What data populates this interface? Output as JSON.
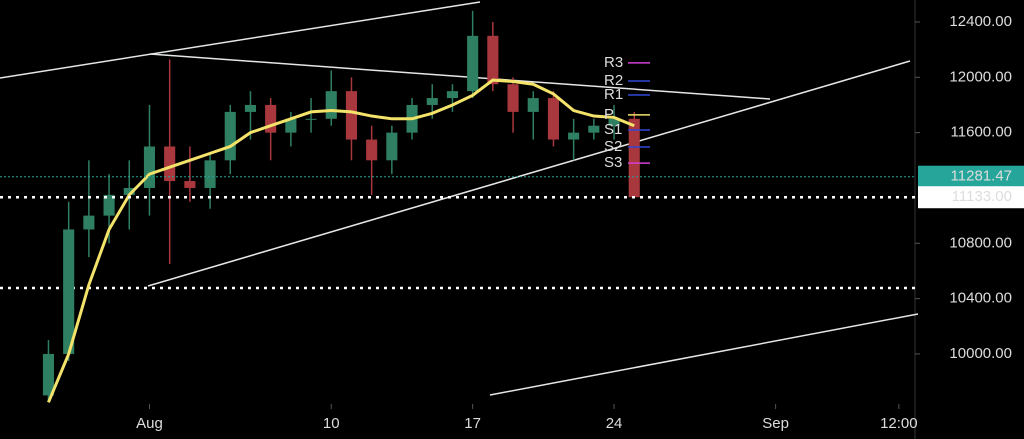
{
  "chart_data": {
    "type": "candlestick",
    "x": [
      -4,
      -3,
      -2,
      -1,
      0,
      1,
      2,
      3,
      4,
      5,
      6,
      7,
      8,
      9,
      10,
      11,
      12,
      13,
      14,
      15,
      16,
      17,
      18,
      19,
      20,
      21,
      22,
      23,
      24,
      25
    ],
    "open": [
      9700,
      10000,
      10900,
      11000,
      11150,
      11200,
      11500,
      11250,
      11200,
      11400,
      11750,
      11800,
      11600,
      11700,
      11700,
      11900,
      11550,
      11400,
      11600,
      11800,
      11850,
      11900,
      12300,
      11950,
      11750,
      11850,
      11550,
      11600,
      11650,
      11700
    ],
    "high": [
      10100,
      11100,
      11400,
      11300,
      11400,
      11800,
      12130,
      11500,
      11450,
      11800,
      11900,
      11850,
      11750,
      11850,
      12050,
      12000,
      11650,
      11650,
      11850,
      11950,
      11950,
      12480,
      12400,
      12000,
      11900,
      11900,
      11700,
      11700,
      11800,
      11750
    ],
    "low": [
      9650,
      9950,
      10700,
      10800,
      10900,
      11000,
      10650,
      11100,
      11050,
      11300,
      11550,
      11400,
      11500,
      11600,
      11650,
      11400,
      11150,
      11300,
      11550,
      11700,
      11750,
      11850,
      11900,
      11600,
      11550,
      11500,
      11400,
      11550,
      11550,
      11130
    ],
    "close": [
      10000,
      10900,
      11000,
      11150,
      11200,
      11500,
      11250,
      11200,
      11400,
      11750,
      11800,
      11600,
      11700,
      11700,
      11900,
      11550,
      11400,
      11600,
      11800,
      11850,
      11900,
      12300,
      11950,
      11750,
      11850,
      11550,
      11600,
      11650,
      11700,
      11133
    ],
    "up_color": "#2f7f62",
    "down_color": "#a8383d",
    "series": [
      {
        "color": "#f3e36a",
        "values": [
          9650,
          10000,
          10500,
          10900,
          11150,
          11300,
          11350,
          11400,
          11450,
          11500,
          11600,
          11650,
          11700,
          11750,
          11760,
          11750,
          11720,
          11700,
          11700,
          11740,
          11800,
          11870,
          11980,
          11970,
          11950,
          11880,
          11760,
          11720,
          11710,
          11650
        ]
      }
    ],
    "xlim": [
      -6.4,
      38.9
    ],
    "xticks": [
      {
        "value": 1,
        "label": "Aug"
      },
      10,
      17,
      24,
      {
        "value": 32,
        "label": "Sep"
      },
      {
        "value": 38.1,
        "label": "12:00"
      }
    ],
    "ylim": [
      9385,
      12559
    ],
    "yticks": [
      {
        "value": 12400,
        "label": "12400.00"
      },
      {
        "value": 12000,
        "label": "12000.00"
      },
      {
        "value": 11600,
        "label": "11600.00"
      },
      {
        "value": 10800,
        "label": "10800.00"
      },
      {
        "value": 10400,
        "label": "10400.00"
      },
      {
        "value": 10000,
        "label": "10000.00"
      }
    ],
    "price_labels": [
      {
        "value": 11281.47,
        "label": "11281.47",
        "color": "#26a69a"
      },
      {
        "value": 11133,
        "label": "11133.00",
        "color": "#ffffff"
      }
    ],
    "pivots": [
      {
        "label": "R3",
        "value": 12104,
        "color": "#d43fd4"
      },
      {
        "label": "R2",
        "value": 11973,
        "color": "#3048d8"
      },
      {
        "label": "R1",
        "value": 11872,
        "color": "#3048d8"
      },
      {
        "label": "P",
        "value": 11728,
        "color": "#f3e36a"
      },
      {
        "label": "S1",
        "value": 11619,
        "color": "#3048d8"
      },
      {
        "label": "S2",
        "value": 11496,
        "color": "#3048d8"
      },
      {
        "label": "S3",
        "value": 11380,
        "color": "#d43fd4"
      }
    ]
  }
}
